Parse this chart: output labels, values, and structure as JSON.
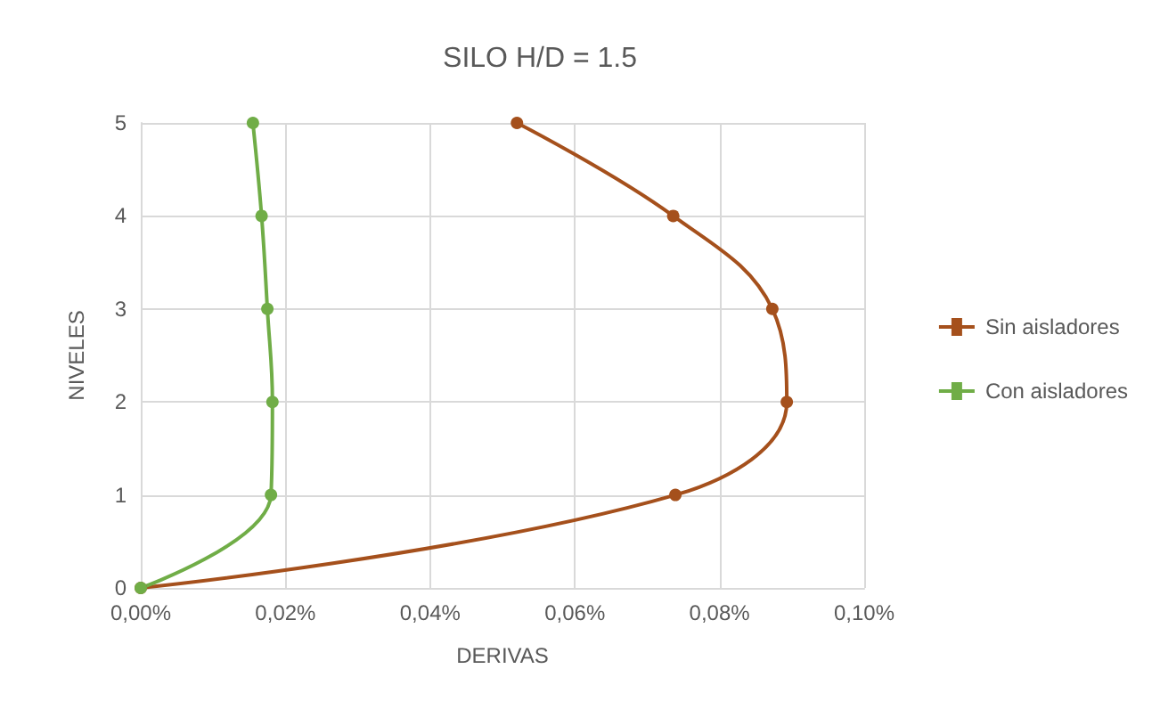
{
  "chart_data": {
    "type": "line",
    "title": "SILO H/D = 1.5",
    "xlabel": "DERIVAS",
    "ylabel": "NIVELES",
    "xlim": [
      0,
      0.1
    ],
    "xticks": [
      {
        "value": 0,
        "label": "0,00%"
      },
      {
        "value": 0.02,
        "label": "0,02%"
      },
      {
        "value": 0.04,
        "label": "0,04%"
      },
      {
        "value": 0.06,
        "label": "0,06%"
      },
      {
        "value": 0.08,
        "label": "0,08%"
      },
      {
        "value": 0.1,
        "label": "0,10%"
      }
    ],
    "ylim": [
      0,
      5
    ],
    "yticks": [
      0,
      1,
      2,
      3,
      4,
      5
    ],
    "grid": true,
    "legend": "right",
    "marker": "circle",
    "series": [
      {
        "name": "Sin aisladores",
        "color": "#a5501c",
        "x": [
          0,
          0.0739,
          0.0893,
          0.0873,
          0.0736,
          0.052
        ],
        "values": [
          0,
          1,
          2,
          3,
          4,
          5
        ]
      },
      {
        "name": "Con aisladores",
        "color": "#70ad47",
        "x": [
          0,
          0.018,
          0.0182,
          0.0175,
          0.0167,
          0.0155
        ],
        "values": [
          0,
          1,
          2,
          3,
          4,
          5
        ]
      }
    ]
  }
}
